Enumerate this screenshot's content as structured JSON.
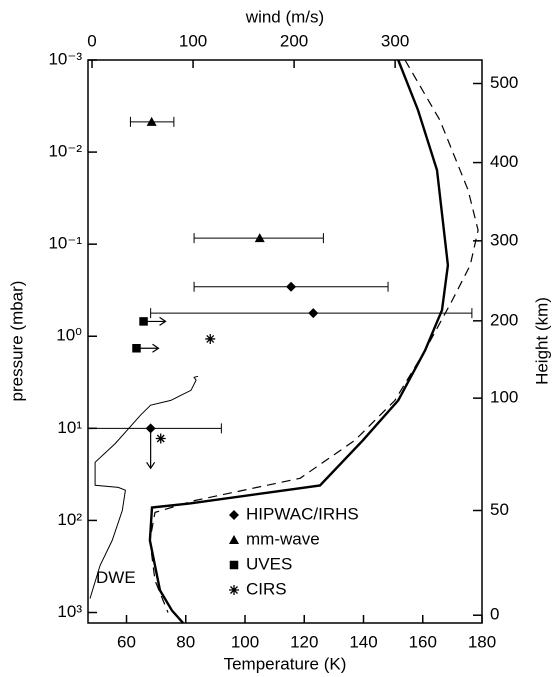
{
  "chart_data": {
    "type": "profile",
    "xlabel": "Temperature (K)",
    "x2label": "wind (m/s)",
    "ylabel": "pressure (mbar)",
    "y2label": "Height (km)",
    "xlim": [
      47,
      180
    ],
    "xticks": [
      60,
      80,
      100,
      120,
      140,
      160,
      180
    ],
    "x2lim": [
      -4,
      386
    ],
    "x2ticks": [
      0,
      100,
      200,
      300
    ],
    "ylim": [
      0.001,
      1300
    ],
    "y_log": true,
    "y_inverted": true,
    "yticks": [
      {
        "value": 0.001,
        "label": "10⁻³"
      },
      {
        "value": 0.01,
        "label": "10⁻²"
      },
      {
        "value": 0.1,
        "label": "10⁻¹"
      },
      {
        "value": 1,
        "label": "10⁰"
      },
      {
        "value": 10,
        "label": "10¹"
      },
      {
        "value": 100,
        "label": "10²"
      },
      {
        "value": 1000,
        "label": "10³"
      }
    ],
    "y2ticks": [
      0,
      50,
      100,
      200,
      300,
      400,
      500
    ],
    "y2_pressure": [
      1070,
      78,
      4.7,
      0.68,
      0.092,
      0.013,
      0.0018
    ],
    "series": [
      {
        "color": "#000000",
        "dash": false,
        "width": 2.4,
        "x": [
          151.7,
          158.4,
          164.8,
          168.5,
          166.5,
          160.8,
          151.7,
          139.8,
          125.3,
          81.4,
          68.6,
          67.9,
          71.3,
          75.4,
          79.1
        ],
        "values": [
          0.001,
          0.0035,
          0.0157,
          0.169,
          0.52,
          1.42,
          4.97,
          13.5,
          41.8,
          65.3,
          72.4,
          165,
          575,
          955,
          1300
        ]
      },
      {
        "color": "#000000",
        "dash": true,
        "width": 1.2,
        "x": [
          154.0,
          165.8,
          175.3,
          178.7,
          176.0,
          169.9,
          160.8,
          150.6,
          137.1,
          118.6,
          83.1,
          69.6,
          67.9,
          69.6,
          74.0
        ],
        "values": [
          0.001,
          0.0045,
          0.0259,
          0.0705,
          0.169,
          0.41,
          1.42,
          4.97,
          13.5,
          34.9,
          60.7,
          81.9,
          165,
          449,
          1000
        ]
      },
      {
        "color": "#000000",
        "dash": false,
        "width": 1,
        "axis": "x2",
        "label": "DWE",
        "x": [
          -2,
          8,
          20,
          30,
          33,
          26,
          3,
          3,
          23,
          48,
          58,
          78,
          88,
          98,
          103,
          101,
          105
        ],
        "values": [
          705,
          308,
          165,
          78,
          47,
          43.8,
          41.6,
          23.4,
          14.6,
          7.2,
          5.6,
          4.97,
          4.38,
          3.86,
          3.0,
          2.79,
          2.72
        ]
      },
      {
        "name": "HIPWAC/IRHS",
        "marker": "diamond",
        "color": "#000000",
        "axis": "x2",
        "x": [
          58,
          197,
          219
        ],
        "values": [
          10,
          0.29,
          0.56
        ],
        "xmin": [
          -4,
          101,
          58
        ],
        "xmax": [
          128,
          293,
          376
        ],
        "down_arrow": [
          true,
          false,
          false
        ]
      },
      {
        "name": "mm-wave",
        "marker": "triangle",
        "color": "#000000",
        "axis": "x2",
        "x": [
          59,
          166
        ],
        "values": [
          0.0047,
          0.086
        ],
        "xmin": [
          38,
          101
        ],
        "xmax": [
          81,
          229
        ]
      },
      {
        "name": "UVES",
        "marker": "square",
        "color": "#000000",
        "axis": "x2",
        "arrow": "right",
        "x": [
          51,
          44
        ],
        "values": [
          0.69,
          1.35
        ]
      },
      {
        "name": "CIRS",
        "marker": "asterisk",
        "color": "#000000",
        "axis": "x2",
        "x": [
          117,
          68
        ],
        "values": [
          1.07,
          12.9
        ]
      }
    ]
  }
}
